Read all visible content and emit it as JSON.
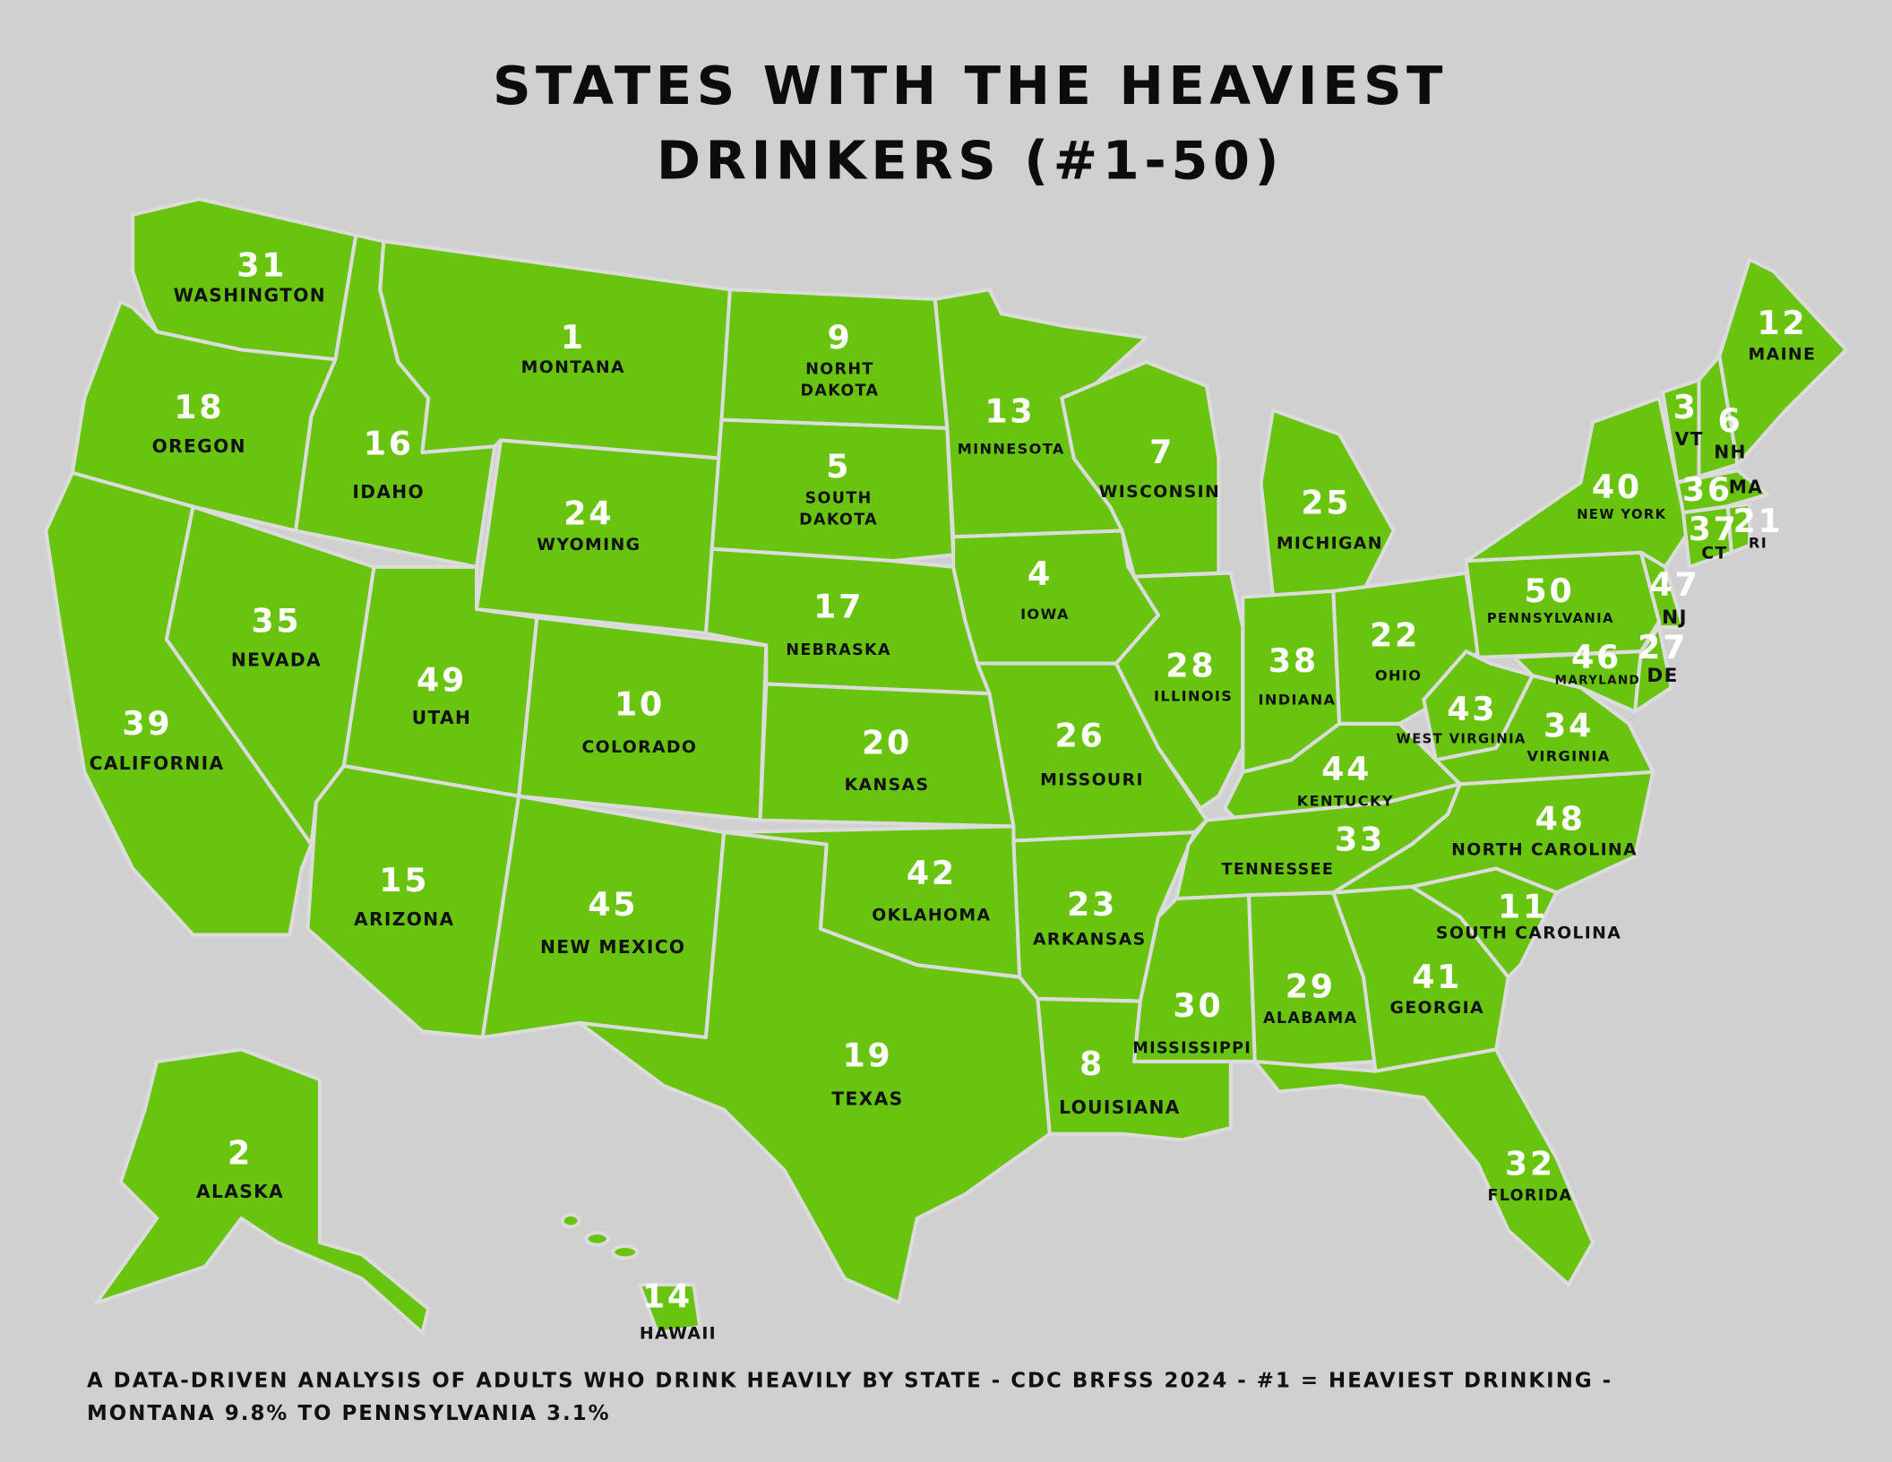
{
  "title": [
    "STATES WITH THE HEAVIEST",
    "DRINKERS (#1-50)"
  ],
  "states": [
    {
      "rank": 31,
      "label": [
        "WASHINGTON"
      ]
    },
    {
      "rank": 18,
      "label": [
        "OREGON"
      ]
    },
    {
      "rank": 39,
      "label": [
        "CALIFORNIA"
      ]
    },
    {
      "rank": 35,
      "label": [
        "NEVADA"
      ]
    },
    {
      "rank": 16,
      "label": [
        "IDAHO"
      ]
    },
    {
      "rank": 1,
      "label": [
        "MONTANA"
      ]
    },
    {
      "rank": 24,
      "label": [
        "WYOMING"
      ]
    },
    {
      "rank": 49,
      "label": [
        "UTAH"
      ]
    },
    {
      "rank": 15,
      "label": [
        "ARIZONA"
      ]
    },
    {
      "rank": 10,
      "label": [
        "COLORADO"
      ]
    },
    {
      "rank": 45,
      "label": [
        "NEW MEXICO"
      ]
    },
    {
      "rank": 9,
      "label": [
        "NORHT",
        "DAKOTA"
      ]
    },
    {
      "rank": 5,
      "label": [
        "SOUTH",
        "DAKOTA"
      ]
    },
    {
      "rank": 17,
      "label": [
        "NEBRASKA"
      ]
    },
    {
      "rank": 20,
      "label": [
        "KANSAS"
      ]
    },
    {
      "rank": 42,
      "label": [
        "OKLAHOMA"
      ]
    },
    {
      "rank": 19,
      "label": [
        "TEXAS"
      ]
    },
    {
      "rank": 13,
      "label": [
        "MINNESOTA"
      ]
    },
    {
      "rank": 4,
      "label": [
        "IOWA"
      ]
    },
    {
      "rank": 26,
      "label": [
        "MISSOURI"
      ]
    },
    {
      "rank": 23,
      "label": [
        "ARKANSAS"
      ]
    },
    {
      "rank": 8,
      "label": [
        "LOUISIANA"
      ]
    },
    {
      "rank": 7,
      "label": [
        "WISCONSIN"
      ]
    },
    {
      "rank": 28,
      "label": [
        "ILLINOIS"
      ]
    },
    {
      "rank": 25,
      "label": [
        "MICHIGAN"
      ]
    },
    {
      "rank": 38,
      "label": [
        "INDIANA"
      ]
    },
    {
      "rank": 22,
      "label": [
        "OHIO"
      ]
    },
    {
      "rank": 44,
      "label": [
        "KENTUCKY"
      ]
    },
    {
      "rank": 33,
      "label": [
        "TENNESSEE"
      ]
    },
    {
      "rank": 30,
      "label": [
        "MISSISSIPPI"
      ]
    },
    {
      "rank": 29,
      "label": [
        "ALABAMA"
      ]
    },
    {
      "rank": 41,
      "label": [
        "GEORGIA"
      ]
    },
    {
      "rank": 32,
      "label": [
        "FLORIDA"
      ]
    },
    {
      "rank": 11,
      "label": [
        "SOUTH CAROLINA"
      ]
    },
    {
      "rank": 48,
      "label": [
        "NORTH CAROLINA"
      ]
    },
    {
      "rank": 34,
      "label": [
        "VIRGINIA"
      ]
    },
    {
      "rank": 43,
      "label": [
        "WEST VIRGINIA"
      ]
    },
    {
      "rank": 50,
      "label": [
        "PENNSYLVANIA"
      ]
    },
    {
      "rank": 40,
      "label": [
        "NEW YORK"
      ]
    },
    {
      "rank": 46,
      "label": [
        "MARYLAND"
      ]
    },
    {
      "rank": 27,
      "label": [
        "DE"
      ]
    },
    {
      "rank": 47,
      "label": [
        "NJ"
      ]
    },
    {
      "rank": 3,
      "label": [
        "VT"
      ]
    },
    {
      "rank": 6,
      "label": [
        "NH"
      ]
    },
    {
      "rank": 12,
      "label": [
        "MAINE"
      ]
    },
    {
      "rank": 36,
      "label": [
        "MA"
      ]
    },
    {
      "rank": 37,
      "label": [
        "CT"
      ]
    },
    {
      "rank": 21,
      "label": [
        "RI"
      ]
    },
    {
      "rank": 2,
      "label": [
        "ALASKA"
      ]
    },
    {
      "rank": 14,
      "label": [
        "HAWAII"
      ]
    }
  ],
  "footnote": [
    "A DATA-DRIVEN ANALYSIS OF ADULTS WHO DRINK HEAVILY BY STATE - CDC BRFSS 2024 - #1 = HEAVIEST DRINKING -",
    "MONTANA 9.8% TO PENNSYLVANIA 3.1%"
  ]
}
